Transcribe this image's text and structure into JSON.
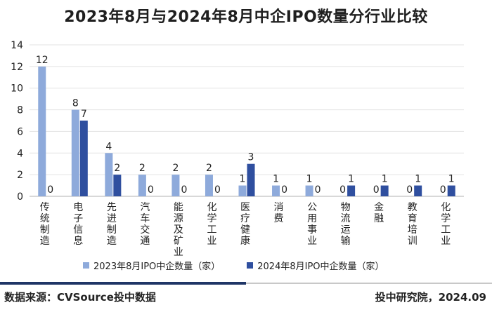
{
  "chart_data": {
    "type": "bar",
    "title": "2023年8月与2024年8月中企IPO数量分行业比较",
    "categories": [
      "传统制造",
      "电子信息",
      "先进制造",
      "汽车交通",
      "能源及矿业",
      "化学工业",
      "医疗健康",
      "消费",
      "公用事业",
      "物流运输",
      "金融",
      "教育培训",
      "化学工业"
    ],
    "series": [
      {
        "name": "2023年8月IPO中企数量（家）",
        "color": "#8eaadb",
        "values": [
          12,
          8,
          4,
          2,
          2,
          2,
          1,
          1,
          1,
          0,
          0,
          0,
          0
        ]
      },
      {
        "name": "2024年8月IPO中企数量（家）",
        "color": "#2f4f9f",
        "values": [
          0,
          7,
          2,
          0,
          0,
          0,
          3,
          0,
          0,
          1,
          1,
          1,
          1
        ]
      }
    ],
    "ylim": [
      0,
      14
    ],
    "yticks": [
      0,
      2,
      4,
      6,
      8,
      10,
      12,
      14
    ],
    "grid": true,
    "legend": "bottom"
  },
  "footer": {
    "source": "数据来源：CVSource投中数据",
    "credit": "投中研究院，2024.09"
  },
  "colors": {
    "brand_dark": "#1f3566"
  }
}
